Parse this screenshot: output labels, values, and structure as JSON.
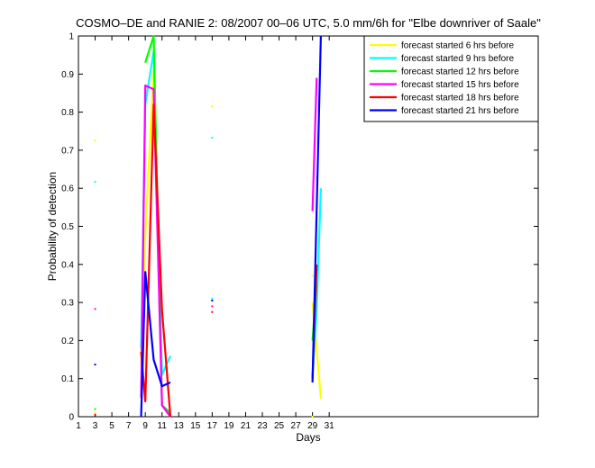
{
  "chart_data": {
    "type": "line",
    "title": "COSMO–DE and RANIE 2: 08/2007 00–06 UTC, 5.0 mm/6h for \"Elbe downriver of Saale\"",
    "xlabel": "Days",
    "ylabel": "Probability of detection",
    "xlim": [
      1,
      56
    ],
    "ylim": [
      0,
      1
    ],
    "xticks": [
      1,
      3,
      5,
      7,
      9,
      11,
      13,
      15,
      17,
      19,
      21,
      23,
      25,
      27,
      29,
      31
    ],
    "yticks": [
      0,
      0.1,
      0.2,
      0.3,
      0.4,
      0.5,
      0.6,
      0.7,
      0.8,
      0.9,
      1
    ],
    "xtick_labels": [
      "1",
      "3",
      "5",
      "7",
      "9",
      "11",
      "13",
      "15",
      "17",
      "19",
      "21",
      "23",
      "25",
      "27",
      "29",
      "31"
    ],
    "ytick_labels": [
      "0",
      "0.1",
      "0.2",
      "0.3",
      "0.4",
      "0.5",
      "0.6",
      "0.7",
      "0.8",
      "0.9",
      "1"
    ],
    "legend_position": "top-right",
    "grid": false,
    "series": [
      {
        "name": "forecast started 6 hrs before",
        "color": "#ffff00",
        "points": [
          [
            3,
            0.725
          ],
          [
            3,
            0.01
          ],
          [
            17,
            0.815
          ],
          [
            29,
            0.0
          ],
          [
            29,
            0.37
          ],
          [
            30,
            0.05
          ]
        ],
        "segments": [
          [
            [
              8.5,
              0.17
            ],
            [
              9,
              0.48
            ],
            [
              10,
              0.91
            ],
            [
              11,
              0.03
            ],
            [
              12,
              0.0
            ]
          ],
          [
            [
              29,
              0.3
            ],
            [
              30,
              0.05
            ]
          ]
        ]
      },
      {
        "name": "forecast started 9 hrs before",
        "color": "#00ffff",
        "points": [
          [
            3,
            0.617
          ],
          [
            17,
            0.733
          ],
          [
            17,
            0.31
          ]
        ],
        "segments": [
          [
            [
              8.5,
              0.18
            ],
            [
              9,
              0.82
            ],
            [
              10,
              0.96
            ],
            [
              11,
              0.11
            ],
            [
              12,
              0.16
            ]
          ],
          [
            [
              29,
              0.1
            ],
            [
              29.5,
              0.28
            ],
            [
              30,
              0.6
            ]
          ]
        ]
      },
      {
        "name": "forecast started 12 hrs before",
        "color": "#00ff00",
        "points": [
          [
            3,
            0.02
          ]
        ],
        "segments": [
          [
            [
              9,
              0.93
            ],
            [
              10,
              1.0
            ],
            [
              11,
              0.03
            ],
            [
              12,
              0.01
            ]
          ],
          [
            [
              29,
              0.2
            ],
            [
              29.5,
              0.35
            ]
          ]
        ]
      },
      {
        "name": "forecast started 15 hrs before",
        "color": "#ff00ff",
        "points": [
          [
            3,
            0.283
          ],
          [
            17,
            0.29
          ]
        ],
        "segments": [
          [
            [
              8.5,
              0.05
            ],
            [
              9,
              0.87
            ],
            [
              10,
              0.86
            ],
            [
              11,
              0.03
            ],
            [
              12,
              0.0
            ]
          ],
          [
            [
              29,
              0.54
            ],
            [
              29.5,
              0.89
            ]
          ]
        ]
      },
      {
        "name": "forecast started 18 hrs before",
        "color": "#ff0000",
        "points": [
          [
            3,
            0.005
          ],
          [
            17,
            0.275
          ]
        ],
        "segments": [
          [
            [
              8.5,
              0.17
            ],
            [
              9,
              0.04
            ],
            [
              10,
              0.82
            ],
            [
              11,
              0.28
            ],
            [
              12,
              0.0
            ]
          ],
          [
            [
              29,
              0.1
            ],
            [
              29.5,
              0.4
            ]
          ]
        ]
      },
      {
        "name": "forecast started 21 hrs before",
        "color": "#0000ff",
        "points": [
          [
            3,
            0.137
          ],
          [
            17,
            0.305
          ]
        ],
        "segments": [
          [
            [
              8.5,
              0.0
            ],
            [
              9,
              0.38
            ],
            [
              10,
              0.15
            ],
            [
              11,
              0.08
            ],
            [
              12,
              0.09
            ]
          ],
          [
            [
              29,
              0.09
            ],
            [
              30,
              1.0
            ]
          ]
        ]
      }
    ]
  }
}
